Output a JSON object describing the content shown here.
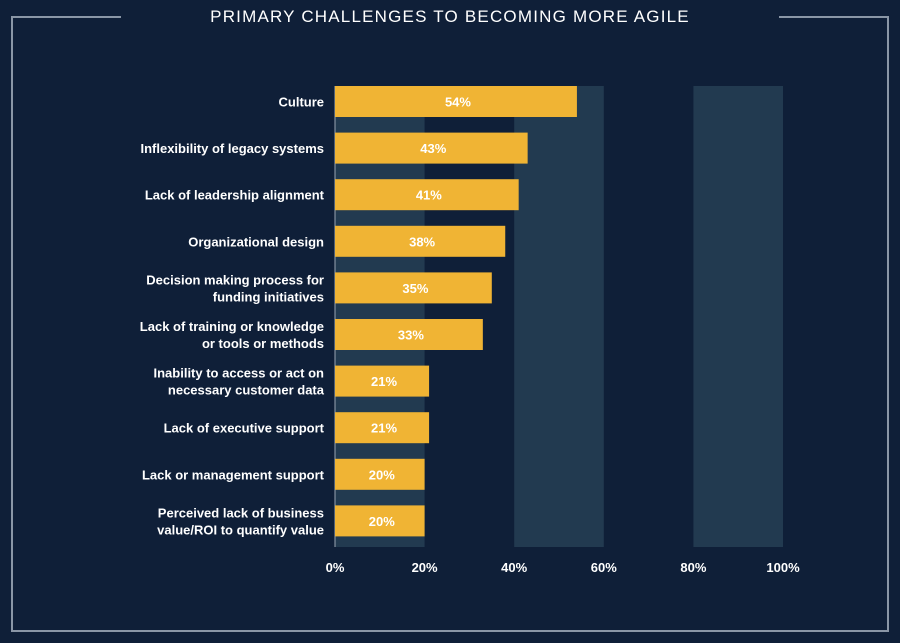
{
  "title": "PRIMARY CHALLENGES TO BECOMING MORE AGILE",
  "colors": {
    "background": "#0f1f38",
    "band": "#223a50",
    "bar": "#f0b434",
    "frame": "#8a96a6",
    "text": "#ffffff"
  },
  "chart_data": {
    "type": "bar",
    "orientation": "horizontal",
    "title": "PRIMARY CHALLENGES TO BECOMING MORE AGILE",
    "categories": [
      [
        "Culture"
      ],
      [
        "Inflexibility of legacy systems"
      ],
      [
        "Lack of leadership alignment"
      ],
      [
        "Organizational design"
      ],
      [
        "Decision making process for",
        "funding initiatives"
      ],
      [
        "Lack of training or knowledge",
        "or tools or methods"
      ],
      [
        "Inability to access or act on",
        "necessary customer data"
      ],
      [
        "Lack of executive support"
      ],
      [
        "Lack or management support"
      ],
      [
        "Perceived lack of business",
        "value/ROI to quantify value"
      ]
    ],
    "values": [
      54,
      43,
      41,
      38,
      35,
      33,
      21,
      21,
      20,
      20
    ],
    "value_labels": [
      "54%",
      "43%",
      "41%",
      "38%",
      "35%",
      "33%",
      "21%",
      "21%",
      "20%",
      "20%"
    ],
    "xlim": [
      0,
      100
    ],
    "xticks": [
      0,
      20,
      40,
      60,
      80,
      100
    ],
    "xtick_labels": [
      "0%",
      "20%",
      "40%",
      "60%",
      "80%",
      "100%"
    ],
    "grid": "alternating vertical bands",
    "legend": "none"
  }
}
